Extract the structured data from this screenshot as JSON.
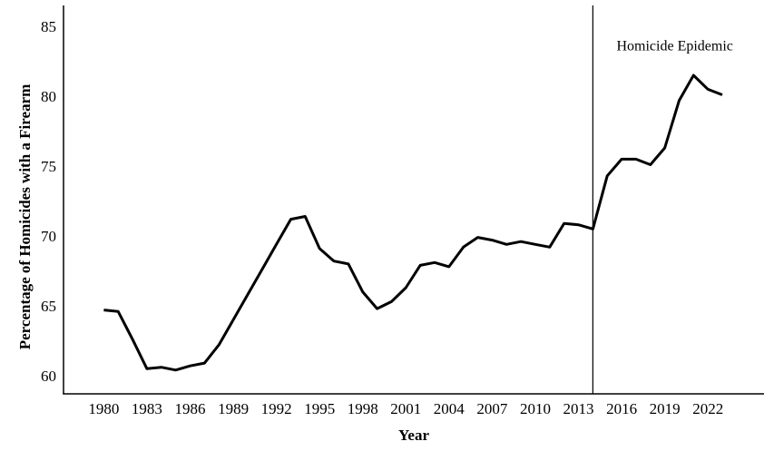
{
  "page": {
    "background_color": "#ffffff",
    "ink_color": "#000000"
  },
  "chart_data": {
    "type": "line",
    "title": "",
    "xlabel": "Year",
    "ylabel": "Percentage of Homicides with a Firearm",
    "x": [
      1980,
      1981,
      1982,
      1983,
      1984,
      1985,
      1986,
      1987,
      1988,
      1989,
      1990,
      1991,
      1992,
      1993,
      1994,
      1995,
      1996,
      1997,
      1998,
      1999,
      2000,
      2001,
      2002,
      2003,
      2004,
      2005,
      2006,
      2007,
      2008,
      2009,
      2010,
      2011,
      2012,
      2013,
      2014,
      2015,
      2016,
      2017,
      2018,
      2019,
      2020,
      2021,
      2022,
      2023
    ],
    "series": [
      {
        "name": "Percentage of Homicides with a Firearm",
        "values": [
          64.7,
          64.6,
          62.6,
          60.5,
          60.6,
          60.4,
          60.7,
          60.9,
          62.2,
          64.0,
          65.8,
          67.6,
          69.4,
          71.2,
          71.4,
          69.1,
          68.2,
          68.0,
          66.0,
          64.8,
          65.3,
          66.3,
          67.9,
          68.1,
          67.8,
          69.2,
          69.9,
          69.7,
          69.4,
          69.6,
          69.4,
          69.2,
          70.9,
          70.8,
          70.5,
          74.3,
          75.5,
          75.5,
          75.1,
          76.3,
          79.7,
          81.5,
          80.5,
          80.1
        ]
      }
    ],
    "x_ticks": [
      1980,
      1983,
      1986,
      1989,
      1992,
      1995,
      1998,
      2001,
      2004,
      2007,
      2010,
      2013,
      2016,
      2019,
      2022
    ],
    "y_ticks": [
      60,
      65,
      70,
      75,
      80,
      85
    ],
    "xlim": [
      1977.2,
      2025.9
    ],
    "ylim": [
      58.7,
      86.5
    ],
    "grid": false,
    "legend": "none",
    "line_color": "#000000",
    "reference_line": {
      "x": 2014,
      "color": "#000000"
    },
    "annotation": {
      "text": "Homicide Epidemic",
      "x": 2019.7,
      "y": 83.3
    }
  }
}
